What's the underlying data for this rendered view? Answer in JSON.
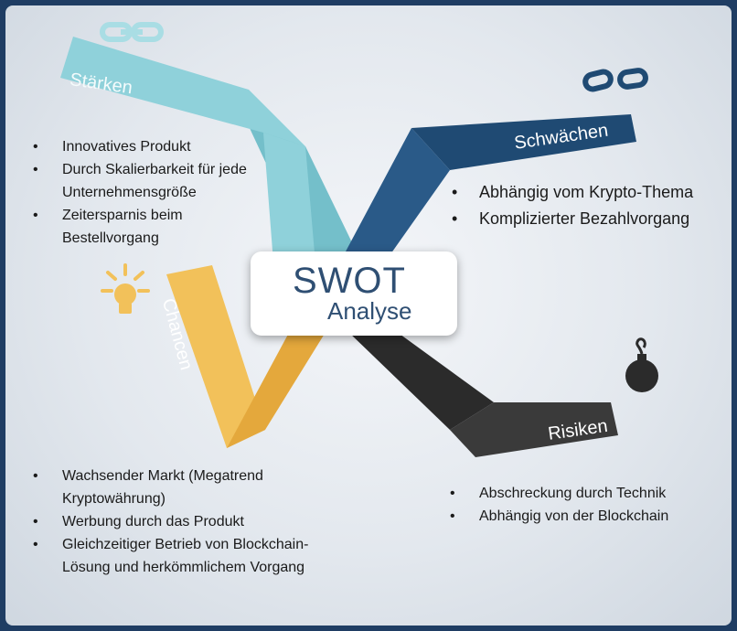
{
  "center": {
    "line1": "SWOT",
    "line2": "Analyse"
  },
  "strengths": {
    "label": "Stärken",
    "items": [
      "Innovatives Produkt",
      "Durch Skalierbarkeit für jede Unternehmensgröße",
      "Zeitersparnis beim Bestellvorgang"
    ]
  },
  "weaknesses": {
    "label": "Schwächen",
    "items": [
      "Abhängig vom Krypto-Thema",
      "Komplizierter Bezahlvorgang"
    ]
  },
  "opportunities": {
    "label": "Chancen",
    "items": [
      "Wachsender Markt (Megatrend Kryptowährung)",
      "Werbung durch das Produkt",
      "Gleichzeitiger Betrieb von Blockchain-Lösung und herkömmlichem Vorgang"
    ]
  },
  "threats": {
    "label": "Risiken",
    "items": [
      "Abschreckung durch Technik",
      "Abhängig von der Blockchain"
    ]
  },
  "colors": {
    "frame": "#1f3d63",
    "strengths": "#8fd1da",
    "weaknesses": "#1f4a73",
    "opportunities": "#f2c15a",
    "threats": "#3a3a3a",
    "center_text": "#2f4f73"
  },
  "icons": {
    "strengths": "chain-link-icon",
    "weaknesses": "broken-chain-icon",
    "opportunities": "light-bulb-icon",
    "threats": "bomb-icon"
  }
}
